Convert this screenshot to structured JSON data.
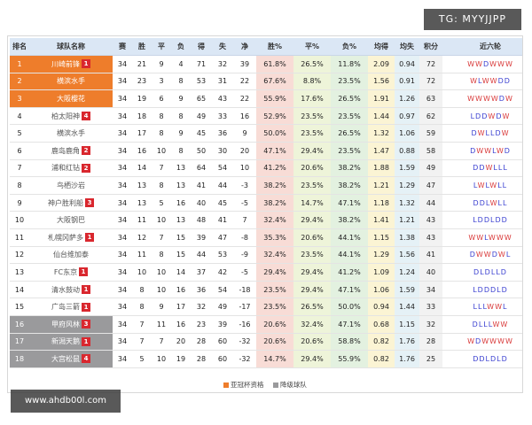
{
  "watermark": {
    "top_right": "TG: MYYJJPP",
    "bottom_left": "www.ahdb00l.com"
  },
  "colors": {
    "acl_zone": "#ee7d2b",
    "relegation_zone": "#9a9a9c",
    "badge": "#d9272e",
    "header": "#dbe7f5"
  },
  "headers": [
    "排名",
    "球队名称",
    "赛",
    "胜",
    "平",
    "负",
    "得",
    "失",
    "净",
    "胜%",
    "平%",
    "负%",
    "均得",
    "均失",
    "积分",
    "近六轮"
  ],
  "legend": {
    "acl": "亚冠杯资格",
    "relegation": "降级球队"
  },
  "rows": [
    {
      "rank": "1",
      "team": "川崎前锋",
      "badge": "1",
      "zone": "acl",
      "played": "34",
      "w": "21",
      "d": "9",
      "l": "4",
      "gf": "71",
      "ga": "32",
      "gd": "39",
      "wp": "61.8%",
      "dp": "26.5%",
      "lp": "11.8%",
      "gfa": "2.09",
      "gaa": "0.94",
      "pts": "72",
      "form": "WWDWWW"
    },
    {
      "rank": "2",
      "team": "横滨水手",
      "badge": "",
      "zone": "acl",
      "played": "34",
      "w": "23",
      "d": "3",
      "l": "8",
      "gf": "53",
      "ga": "31",
      "gd": "22",
      "wp": "67.6%",
      "dp": "8.8%",
      "lp": "23.5%",
      "gfa": "1.56",
      "gaa": "0.91",
      "pts": "72",
      "form": "WLWWDD"
    },
    {
      "rank": "3",
      "team": "大阪樱花",
      "badge": "",
      "zone": "acl",
      "played": "34",
      "w": "19",
      "d": "6",
      "l": "9",
      "gf": "65",
      "ga": "43",
      "gd": "22",
      "wp": "55.9%",
      "dp": "17.6%",
      "lp": "26.5%",
      "gfa": "1.91",
      "gaa": "1.26",
      "pts": "63",
      "form": "WWWWDW"
    },
    {
      "rank": "4",
      "team": "柏太阳神",
      "badge": "4",
      "zone": "",
      "played": "34",
      "w": "18",
      "d": "8",
      "l": "8",
      "gf": "49",
      "ga": "33",
      "gd": "16",
      "wp": "52.9%",
      "dp": "23.5%",
      "lp": "23.5%",
      "gfa": "1.44",
      "gaa": "0.97",
      "pts": "62",
      "form": "LDDWDW"
    },
    {
      "rank": "5",
      "team": "横滨水手",
      "badge": "",
      "zone": "",
      "played": "34",
      "w": "17",
      "d": "8",
      "l": "9",
      "gf": "45",
      "ga": "36",
      "gd": "9",
      "wp": "50.0%",
      "dp": "23.5%",
      "lp": "26.5%",
      "gfa": "1.32",
      "gaa": "1.06",
      "pts": "59",
      "form": "DWLLDW"
    },
    {
      "rank": "6",
      "team": "鹿岛鹿角",
      "badge": "2",
      "zone": "",
      "played": "34",
      "w": "16",
      "d": "10",
      "l": "8",
      "gf": "50",
      "ga": "30",
      "gd": "20",
      "wp": "47.1%",
      "dp": "29.4%",
      "lp": "23.5%",
      "gfa": "1.47",
      "gaa": "0.88",
      "pts": "58",
      "form": "DWWLWD"
    },
    {
      "rank": "7",
      "team": "浦和红钻",
      "badge": "2",
      "zone": "",
      "played": "34",
      "w": "14",
      "d": "7",
      "l": "13",
      "gf": "64",
      "ga": "54",
      "gd": "10",
      "wp": "41.2%",
      "dp": "20.6%",
      "lp": "38.2%",
      "gfa": "1.88",
      "gaa": "1.59",
      "pts": "49",
      "form": "DDWLLL"
    },
    {
      "rank": "8",
      "team": "鸟栖沙岩",
      "badge": "",
      "zone": "",
      "played": "34",
      "w": "13",
      "d": "8",
      "l": "13",
      "gf": "41",
      "ga": "44",
      "gd": "-3",
      "wp": "38.2%",
      "dp": "23.5%",
      "lp": "38.2%",
      "gfa": "1.21",
      "gaa": "1.29",
      "pts": "47",
      "form": "LWLWLL"
    },
    {
      "rank": "9",
      "team": "神户胜利船",
      "badge": "3",
      "zone": "",
      "played": "34",
      "w": "13",
      "d": "5",
      "l": "16",
      "gf": "40",
      "ga": "45",
      "gd": "-5",
      "wp": "38.2%",
      "dp": "14.7%",
      "lp": "47.1%",
      "gfa": "1.18",
      "gaa": "1.32",
      "pts": "44",
      "form": "DDLWLL"
    },
    {
      "rank": "10",
      "team": "大阪钢巴",
      "badge": "",
      "zone": "",
      "played": "34",
      "w": "11",
      "d": "10",
      "l": "13",
      "gf": "48",
      "ga": "41",
      "gd": "7",
      "wp": "32.4%",
      "dp": "29.4%",
      "lp": "38.2%",
      "gfa": "1.41",
      "gaa": "1.21",
      "pts": "43",
      "form": "LDDLDD"
    },
    {
      "rank": "11",
      "team": "札幌冈萨多",
      "badge": "1",
      "zone": "",
      "played": "34",
      "w": "12",
      "d": "7",
      "l": "15",
      "gf": "39",
      "ga": "47",
      "gd": "-8",
      "wp": "35.3%",
      "dp": "20.6%",
      "lp": "44.1%",
      "gfa": "1.15",
      "gaa": "1.38",
      "pts": "43",
      "form": "WWLWWW"
    },
    {
      "rank": "12",
      "team": "仙台维加泰",
      "badge": "",
      "zone": "",
      "played": "34",
      "w": "11",
      "d": "8",
      "l": "15",
      "gf": "44",
      "ga": "53",
      "gd": "-9",
      "wp": "32.4%",
      "dp": "23.5%",
      "lp": "44.1%",
      "gfa": "1.29",
      "gaa": "1.56",
      "pts": "41",
      "form": "DWWDWL"
    },
    {
      "rank": "13",
      "team": "FC东京",
      "badge": "1",
      "zone": "",
      "played": "34",
      "w": "10",
      "d": "10",
      "l": "14",
      "gf": "37",
      "ga": "42",
      "gd": "-5",
      "wp": "29.4%",
      "dp": "29.4%",
      "lp": "41.2%",
      "gfa": "1.09",
      "gaa": "1.24",
      "pts": "40",
      "form": "DLDLLD"
    },
    {
      "rank": "14",
      "team": "清水鼓动",
      "badge": "1",
      "zone": "",
      "played": "34",
      "w": "8",
      "d": "10",
      "l": "16",
      "gf": "36",
      "ga": "54",
      "gd": "-18",
      "wp": "23.5%",
      "dp": "29.4%",
      "lp": "47.1%",
      "gfa": "1.06",
      "gaa": "1.59",
      "pts": "34",
      "form": "LDDDLD"
    },
    {
      "rank": "15",
      "team": "广岛三箭",
      "badge": "1",
      "zone": "",
      "played": "34",
      "w": "8",
      "d": "9",
      "l": "17",
      "gf": "32",
      "ga": "49",
      "gd": "-17",
      "wp": "23.5%",
      "dp": "26.5%",
      "lp": "50.0%",
      "gfa": "0.94",
      "gaa": "1.44",
      "pts": "33",
      "form": "LLLWWL"
    },
    {
      "rank": "16",
      "team": "甲府风林",
      "badge": "3",
      "zone": "rel",
      "played": "34",
      "w": "7",
      "d": "11",
      "l": "16",
      "gf": "23",
      "ga": "39",
      "gd": "-16",
      "wp": "20.6%",
      "dp": "32.4%",
      "lp": "47.1%",
      "gfa": "0.68",
      "gaa": "1.15",
      "pts": "32",
      "form": "DLLLWW"
    },
    {
      "rank": "17",
      "team": "新潟天鹅",
      "badge": "1",
      "zone": "rel",
      "played": "34",
      "w": "7",
      "d": "7",
      "l": "20",
      "gf": "28",
      "ga": "60",
      "gd": "-32",
      "wp": "20.6%",
      "dp": "20.6%",
      "lp": "58.8%",
      "gfa": "0.82",
      "gaa": "1.76",
      "pts": "28",
      "form": "WDWWWW"
    },
    {
      "rank": "18",
      "team": "大宫松鼠",
      "badge": "4",
      "zone": "rel",
      "played": "34",
      "w": "5",
      "d": "10",
      "l": "19",
      "gf": "28",
      "ga": "60",
      "gd": "-32",
      "wp": "14.7%",
      "dp": "29.4%",
      "lp": "55.9%",
      "gfa": "0.82",
      "gaa": "1.76",
      "pts": "25",
      "form": "DDLDLD"
    }
  ]
}
